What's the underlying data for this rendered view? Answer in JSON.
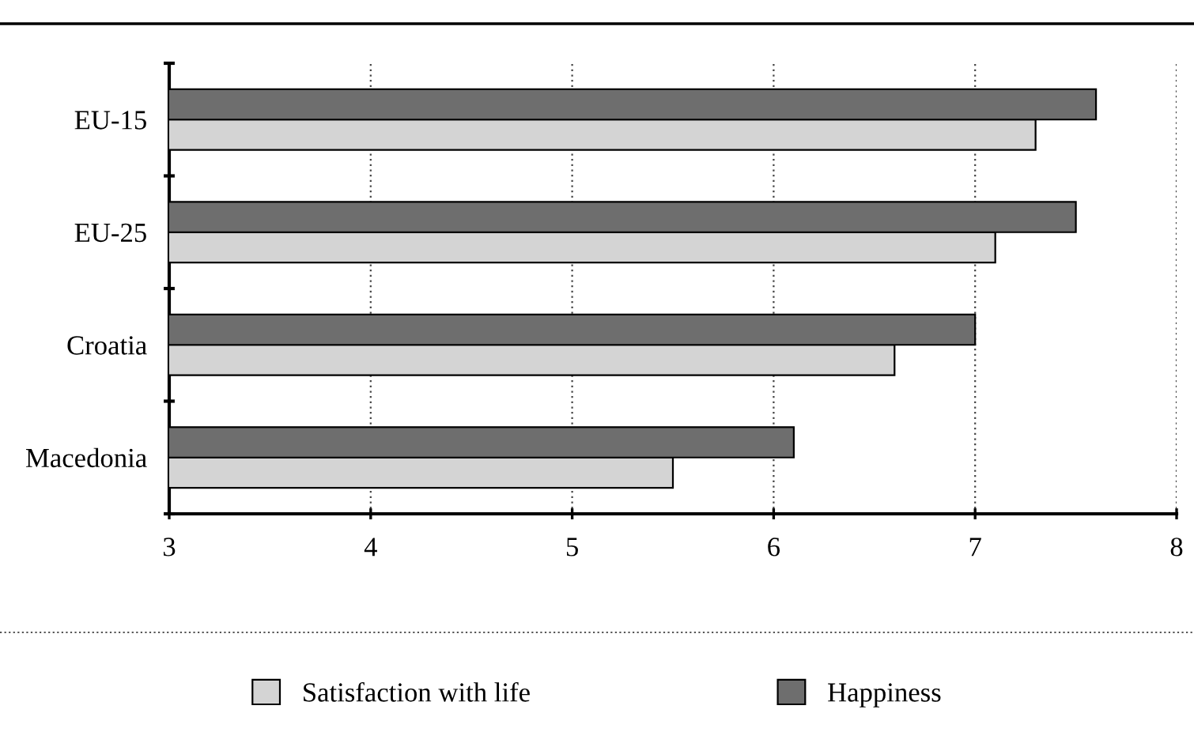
{
  "chart_data": {
    "type": "bar",
    "orientation": "horizontal",
    "categories": [
      "EU-15",
      "EU-25",
      "Croatia",
      "Macedonia"
    ],
    "series": [
      {
        "name": "Satisfaction with life",
        "color": "#d4d4d4",
        "values": [
          7.3,
          7.1,
          6.6,
          5.5
        ]
      },
      {
        "name": "Happiness",
        "color": "#6e6e6e",
        "values": [
          7.6,
          7.5,
          7.0,
          6.1
        ]
      }
    ],
    "xlim": [
      3,
      8
    ],
    "xticks": [
      3,
      4,
      5,
      6,
      7,
      8
    ],
    "grid": "x",
    "legend": "bottom"
  }
}
